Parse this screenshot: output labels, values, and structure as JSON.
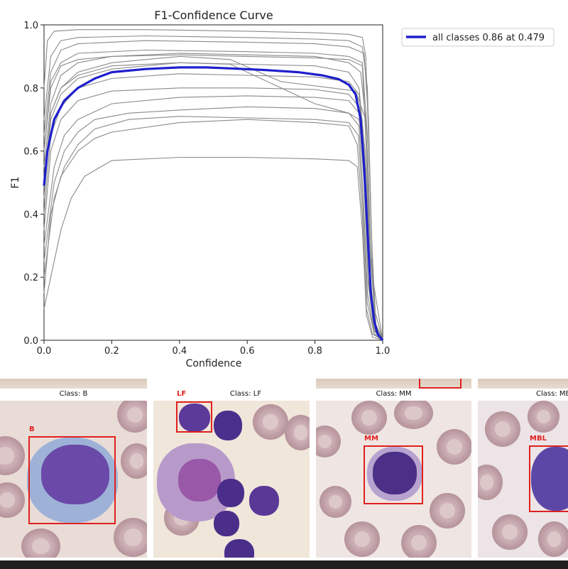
{
  "chart_data": {
    "type": "line",
    "title": "F1-Confidence Curve",
    "xlabel": "Confidence",
    "ylabel": "F1",
    "xlim": [
      0,
      1
    ],
    "ylim": [
      0,
      1
    ],
    "xticks": [
      "0.0",
      "0.2",
      "0.4",
      "0.6",
      "0.8",
      "1.0"
    ],
    "yticks": [
      "0.0",
      "0.2",
      "0.4",
      "0.6",
      "0.8",
      "1.0"
    ],
    "legend_position": "outside-top-right",
    "grid": false,
    "highlight_series": {
      "name": "all classes 0.86 at 0.479",
      "color": "#1f1fcc",
      "x": [
        0.0,
        0.01,
        0.03,
        0.06,
        0.1,
        0.15,
        0.2,
        0.3,
        0.4,
        0.479,
        0.55,
        0.65,
        0.75,
        0.82,
        0.87,
        0.9,
        0.92,
        0.935,
        0.945,
        0.955,
        0.965,
        0.975,
        0.985,
        1.0
      ],
      "y": [
        0.49,
        0.6,
        0.7,
        0.76,
        0.8,
        0.83,
        0.85,
        0.86,
        0.865,
        0.865,
        0.862,
        0.857,
        0.85,
        0.84,
        0.828,
        0.81,
        0.78,
        0.7,
        0.55,
        0.35,
        0.15,
        0.06,
        0.02,
        0.0
      ]
    },
    "class_series_color": "#8a8a8a",
    "class_series": [
      {
        "x": [
          0.0,
          0.01,
          0.03,
          0.1,
          0.3,
          0.6,
          0.8,
          0.9,
          0.94,
          0.95,
          0.96,
          0.97,
          1.0
        ],
        "y": [
          0.8,
          0.95,
          0.98,
          0.985,
          0.985,
          0.98,
          0.975,
          0.97,
          0.96,
          0.9,
          0.6,
          0.2,
          0.0
        ]
      },
      {
        "x": [
          0.0,
          0.02,
          0.05,
          0.1,
          0.3,
          0.6,
          0.8,
          0.9,
          0.94,
          0.955,
          0.965,
          0.975,
          1.0
        ],
        "y": [
          0.7,
          0.9,
          0.95,
          0.96,
          0.965,
          0.96,
          0.955,
          0.95,
          0.93,
          0.8,
          0.4,
          0.1,
          0.0
        ]
      },
      {
        "x": [
          0.0,
          0.02,
          0.05,
          0.1,
          0.3,
          0.6,
          0.8,
          0.9,
          0.945,
          0.958,
          0.968,
          0.98,
          1.0
        ],
        "y": [
          0.65,
          0.85,
          0.92,
          0.94,
          0.95,
          0.945,
          0.94,
          0.93,
          0.91,
          0.7,
          0.3,
          0.05,
          0.0
        ]
      },
      {
        "x": [
          0.0,
          0.02,
          0.05,
          0.1,
          0.3,
          0.6,
          0.8,
          0.9,
          0.94,
          0.955,
          0.965,
          0.98,
          1.0
        ],
        "y": [
          0.6,
          0.82,
          0.88,
          0.91,
          0.92,
          0.915,
          0.91,
          0.9,
          0.88,
          0.65,
          0.25,
          0.05,
          0.0
        ]
      },
      {
        "x": [
          0.0,
          0.02,
          0.05,
          0.1,
          0.2,
          0.4,
          0.6,
          0.8,
          0.9,
          0.935,
          0.95,
          0.963,
          0.98,
          1.0
        ],
        "y": [
          0.55,
          0.75,
          0.84,
          0.88,
          0.9,
          0.91,
          0.905,
          0.9,
          0.88,
          0.85,
          0.7,
          0.3,
          0.05,
          0.0
        ]
      },
      {
        "x": [
          0.0,
          0.02,
          0.05,
          0.1,
          0.2,
          0.4,
          0.6,
          0.8,
          0.9,
          0.93,
          0.948,
          0.96,
          0.975,
          1.0
        ],
        "y": [
          0.5,
          0.72,
          0.8,
          0.84,
          0.87,
          0.88,
          0.875,
          0.87,
          0.85,
          0.8,
          0.6,
          0.25,
          0.05,
          0.0
        ]
      },
      {
        "x": [
          0.0,
          0.02,
          0.05,
          0.1,
          0.2,
          0.4,
          0.55,
          0.7,
          0.8,
          0.9,
          0.93,
          0.95,
          0.962,
          0.98,
          1.0
        ],
        "y": [
          0.45,
          0.7,
          0.78,
          0.83,
          0.86,
          0.88,
          0.875,
          0.8,
          0.75,
          0.72,
          0.7,
          0.55,
          0.2,
          0.03,
          0.0
        ]
      },
      {
        "x": [
          0.0,
          0.02,
          0.05,
          0.1,
          0.2,
          0.4,
          0.6,
          0.8,
          0.9,
          0.93,
          0.945,
          0.958,
          0.975,
          1.0
        ],
        "y": [
          0.4,
          0.65,
          0.74,
          0.8,
          0.83,
          0.845,
          0.84,
          0.835,
          0.82,
          0.78,
          0.6,
          0.25,
          0.04,
          0.0
        ]
      },
      {
        "x": [
          0.0,
          0.02,
          0.05,
          0.1,
          0.2,
          0.4,
          0.6,
          0.8,
          0.9,
          0.93,
          0.945,
          0.957,
          0.975,
          1.0
        ],
        "y": [
          0.35,
          0.6,
          0.7,
          0.76,
          0.79,
          0.8,
          0.8,
          0.795,
          0.78,
          0.74,
          0.55,
          0.2,
          0.03,
          0.0
        ]
      },
      {
        "x": [
          0.0,
          0.03,
          0.06,
          0.1,
          0.2,
          0.4,
          0.6,
          0.8,
          0.9,
          0.93,
          0.945,
          0.957,
          0.975,
          1.0
        ],
        "y": [
          0.3,
          0.55,
          0.65,
          0.7,
          0.75,
          0.77,
          0.775,
          0.77,
          0.76,
          0.72,
          0.5,
          0.18,
          0.03,
          0.0
        ]
      },
      {
        "x": [
          0.0,
          0.03,
          0.06,
          0.1,
          0.15,
          0.25,
          0.4,
          0.6,
          0.8,
          0.9,
          0.93,
          0.943,
          0.955,
          0.975,
          1.0
        ],
        "y": [
          0.25,
          0.5,
          0.6,
          0.66,
          0.7,
          0.72,
          0.73,
          0.74,
          0.735,
          0.72,
          0.68,
          0.45,
          0.15,
          0.02,
          0.0
        ]
      },
      {
        "x": [
          0.0,
          0.03,
          0.06,
          0.1,
          0.15,
          0.25,
          0.4,
          0.6,
          0.8,
          0.9,
          0.928,
          0.942,
          0.954,
          0.975,
          1.0
        ],
        "y": [
          0.2,
          0.45,
          0.55,
          0.62,
          0.67,
          0.7,
          0.71,
          0.705,
          0.7,
          0.69,
          0.65,
          0.42,
          0.12,
          0.02,
          0.0
        ]
      },
      {
        "x": [
          0.0,
          0.02,
          0.05,
          0.1,
          0.15,
          0.2,
          0.4,
          0.6,
          0.8,
          0.9,
          0.925,
          0.94,
          0.952,
          0.97,
          1.0
        ],
        "y": [
          0.15,
          0.4,
          0.52,
          0.6,
          0.64,
          0.66,
          0.69,
          0.7,
          0.69,
          0.68,
          0.62,
          0.4,
          0.1,
          0.02,
          0.0
        ]
      },
      {
        "x": [
          0.0,
          0.02,
          0.05,
          0.08,
          0.12,
          0.2,
          0.4,
          0.6,
          0.8,
          0.9,
          0.925,
          0.94,
          0.952,
          0.97,
          1.0
        ],
        "y": [
          0.1,
          0.2,
          0.35,
          0.45,
          0.52,
          0.57,
          0.58,
          0.58,
          0.575,
          0.57,
          0.55,
          0.35,
          0.08,
          0.01,
          0.0
        ]
      },
      {
        "x": [
          0.0,
          0.02,
          0.05,
          0.1,
          0.2,
          0.3,
          0.4,
          0.55,
          0.7,
          0.85,
          0.92,
          0.95,
          0.962,
          0.978,
          1.0
        ],
        "y": [
          0.5,
          0.72,
          0.8,
          0.85,
          0.88,
          0.89,
          0.9,
          0.89,
          0.82,
          0.8,
          0.79,
          0.7,
          0.3,
          0.05,
          0.0
        ]
      },
      {
        "x": [
          0.0,
          0.02,
          0.05,
          0.1,
          0.2,
          0.4,
          0.6,
          0.8,
          0.9,
          0.94,
          0.952,
          0.962,
          0.978,
          1.0
        ],
        "y": [
          0.6,
          0.8,
          0.87,
          0.89,
          0.9,
          0.905,
          0.9,
          0.895,
          0.89,
          0.87,
          0.6,
          0.2,
          0.03,
          0.0
        ]
      }
    ]
  },
  "gallery": {
    "panels": [
      {
        "caption": "Class: B",
        "box_label": "B"
      },
      {
        "caption": "Class: LF",
        "box_label": "LF"
      },
      {
        "caption": "Class: MM",
        "box_label": "MM"
      },
      {
        "caption": "Class: MBL",
        "box_label": "MBL"
      }
    ]
  }
}
